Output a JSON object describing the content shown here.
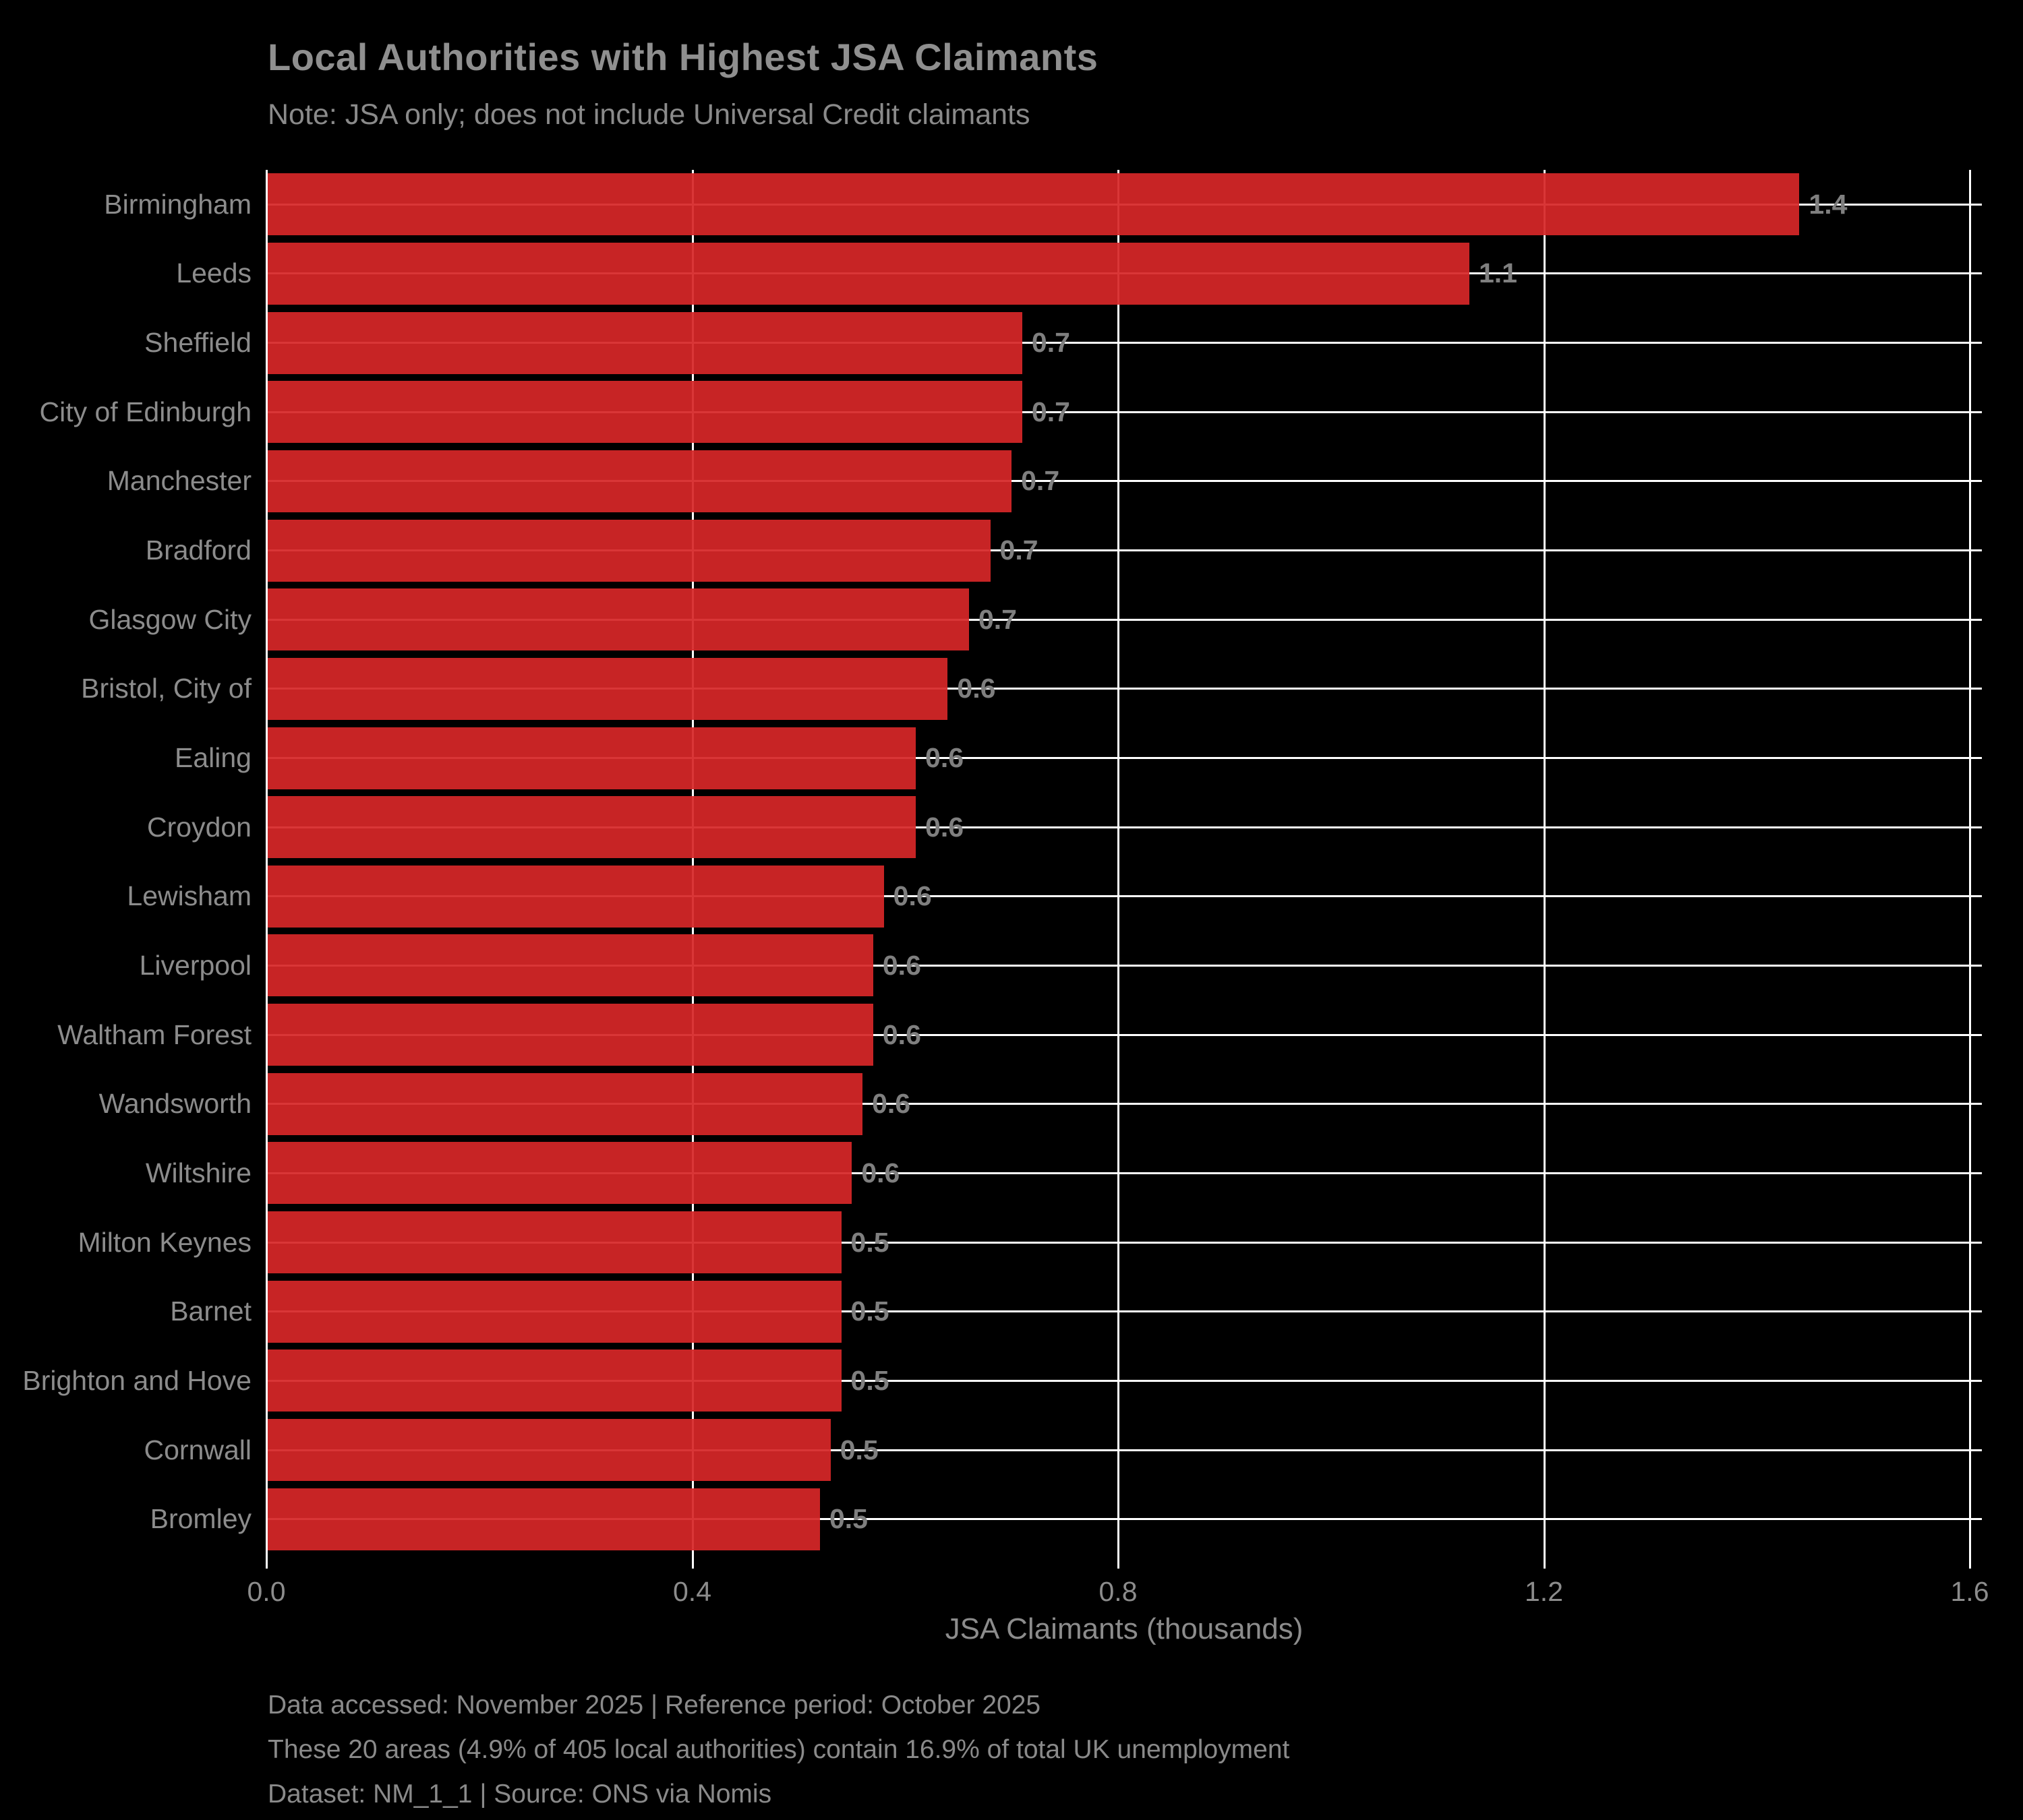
{
  "title": "Local Authorities with Highest JSA Claimants",
  "subtitle": "Note: JSA only; does not include Universal Credit claimants",
  "x_axis": {
    "label": "JSA Claimants (thousands)",
    "ticks": [
      "0.0",
      "0.4",
      "0.8",
      "1.2",
      "1.6"
    ],
    "tick_values": [
      0.0,
      0.4,
      0.8,
      1.2,
      1.6
    ]
  },
  "footer": {
    "line1": "Data accessed: November 2025 | Reference period: October 2025",
    "line2": "These 20 areas (4.9% of 405 local authorities) contain 16.9% of total UK unemployment",
    "line3": "Dataset: NM_1_1 | Source: ONS via Nomis"
  },
  "colors": {
    "background": "#000000",
    "bar": "#d62728",
    "grid": "#ffffff",
    "text": "#8c8c8c"
  },
  "chart_data": {
    "type": "bar",
    "orientation": "horizontal",
    "title": "Local Authorities with Highest JSA Claimants",
    "subtitle": "Note: JSA only; does not include Universal Credit claimants",
    "xlabel": "JSA Claimants (thousands)",
    "ylabel": "",
    "xlim": [
      0,
      1.6
    ],
    "grid": true,
    "legend": false,
    "categories": [
      "Birmingham",
      "Leeds",
      "Sheffield",
      "City of Edinburgh",
      "Manchester",
      "Bradford",
      "Glasgow City",
      "Bristol, City of",
      "Ealing",
      "Croydon",
      "Lewisham",
      "Liverpool",
      "Waltham Forest",
      "Wandsworth",
      "Wiltshire",
      "Milton Keynes",
      "Barnet",
      "Brighton and Hove",
      "Cornwall",
      "Bromley"
    ],
    "values": [
      1.44,
      1.13,
      0.71,
      0.71,
      0.7,
      0.68,
      0.66,
      0.64,
      0.61,
      0.61,
      0.58,
      0.57,
      0.57,
      0.56,
      0.55,
      0.54,
      0.54,
      0.54,
      0.53,
      0.52
    ],
    "bar_labels": [
      "1.4",
      "1.1",
      "0.7",
      "0.7",
      "0.7",
      "0.7",
      "0.7",
      "0.6",
      "0.6",
      "0.6",
      "0.6",
      "0.6",
      "0.6",
      "0.6",
      "0.6",
      "0.5",
      "0.5",
      "0.5",
      "0.5",
      "0.5"
    ]
  }
}
